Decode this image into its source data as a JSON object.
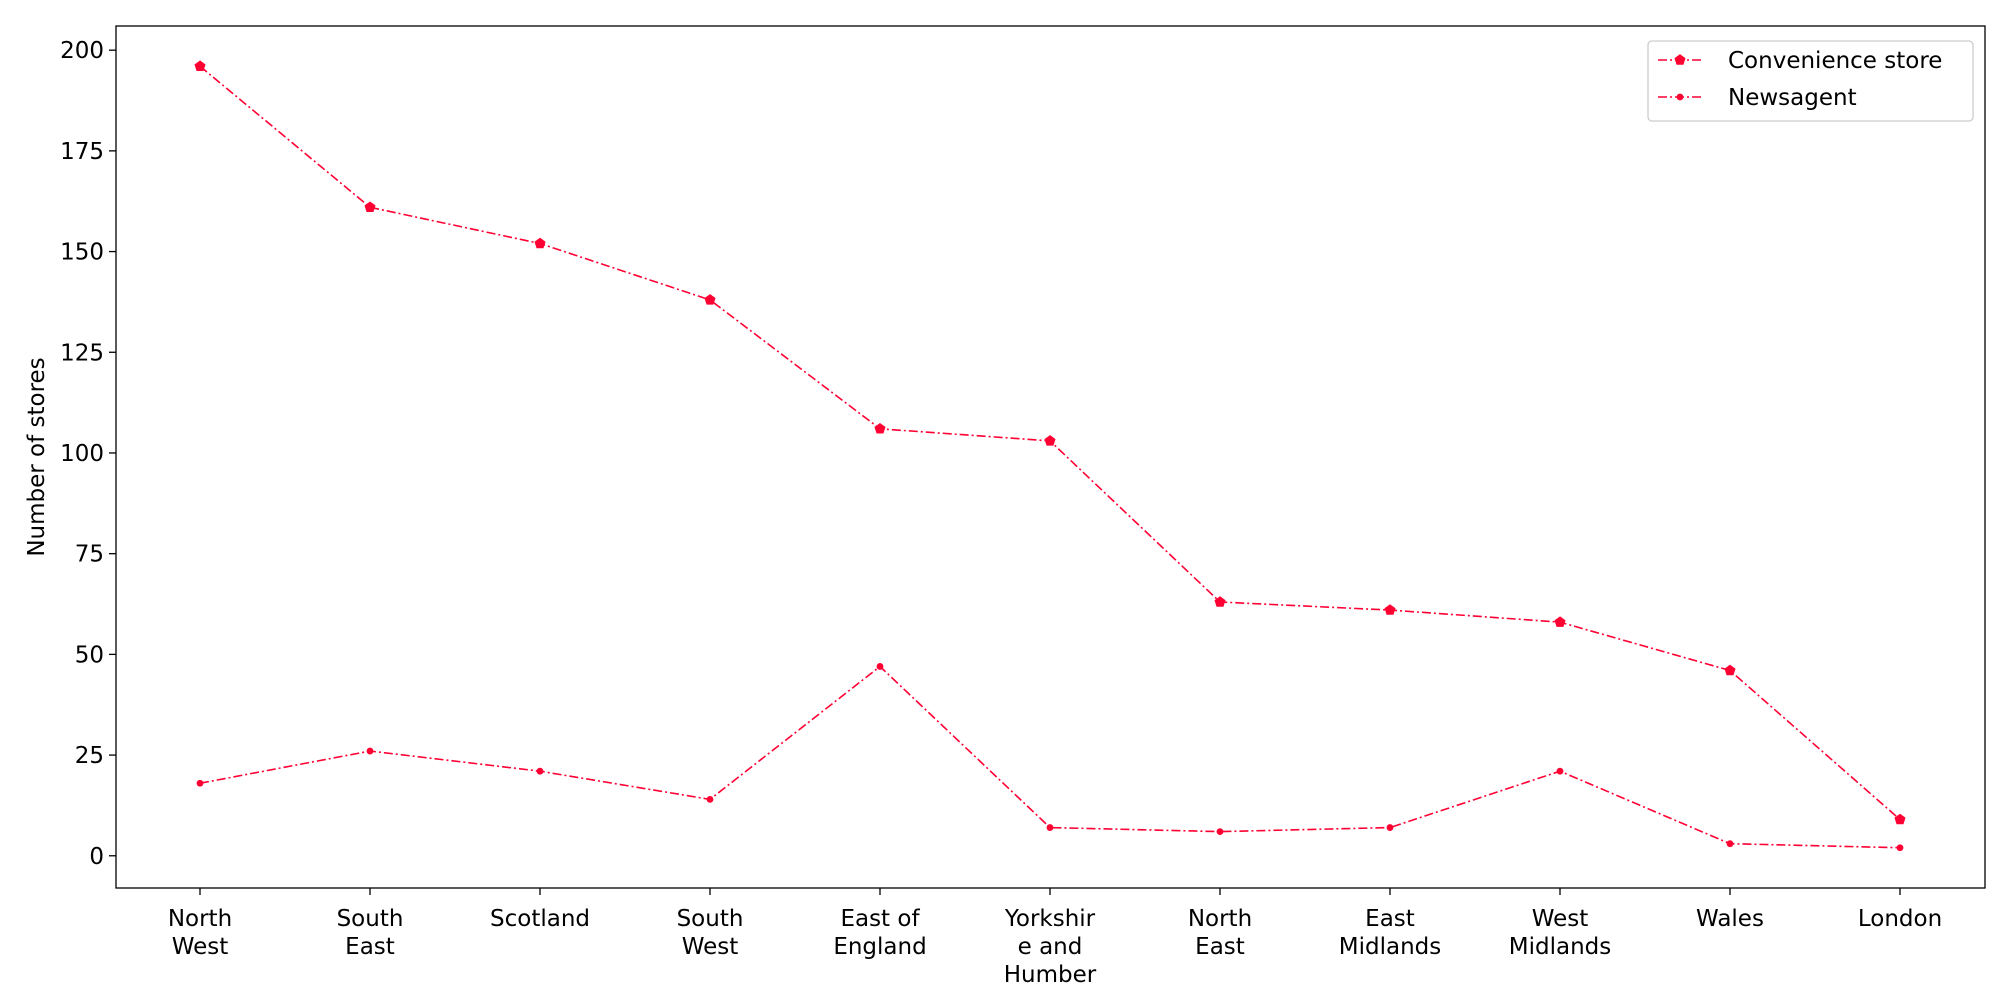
{
  "chart_data": {
    "type": "line",
    "title": "",
    "xlabel": "",
    "ylabel": "Number of stores",
    "ylim": [
      -8,
      206
    ],
    "yticks": [
      0,
      25,
      50,
      75,
      100,
      125,
      150,
      175,
      200
    ],
    "grid": false,
    "legend_position": "top-right",
    "categories": [
      [
        "North",
        "West"
      ],
      [
        "South",
        "East"
      ],
      [
        "Scotland"
      ],
      [
        "South",
        "West"
      ],
      [
        "East of",
        "England"
      ],
      [
        "Yorkshir",
        "e and",
        "Humber"
      ],
      [
        "North",
        "East"
      ],
      [
        "East",
        "Midlands"
      ],
      [
        "West",
        "Midlands"
      ],
      [
        "Wales"
      ],
      [
        "London"
      ]
    ],
    "series": [
      {
        "name": "Convenience store",
        "color": "#ff0033",
        "line_style": "dash-dot",
        "marker": "pentagon",
        "values": [
          196,
          161,
          152,
          138,
          106,
          103,
          63,
          61,
          58,
          46,
          9
        ]
      },
      {
        "name": "Newsagent",
        "color": "#ff0033",
        "line_style": "dash-dot",
        "marker": "point",
        "values": [
          18,
          26,
          21,
          14,
          47,
          7,
          6,
          7,
          21,
          3,
          2
        ]
      }
    ]
  }
}
